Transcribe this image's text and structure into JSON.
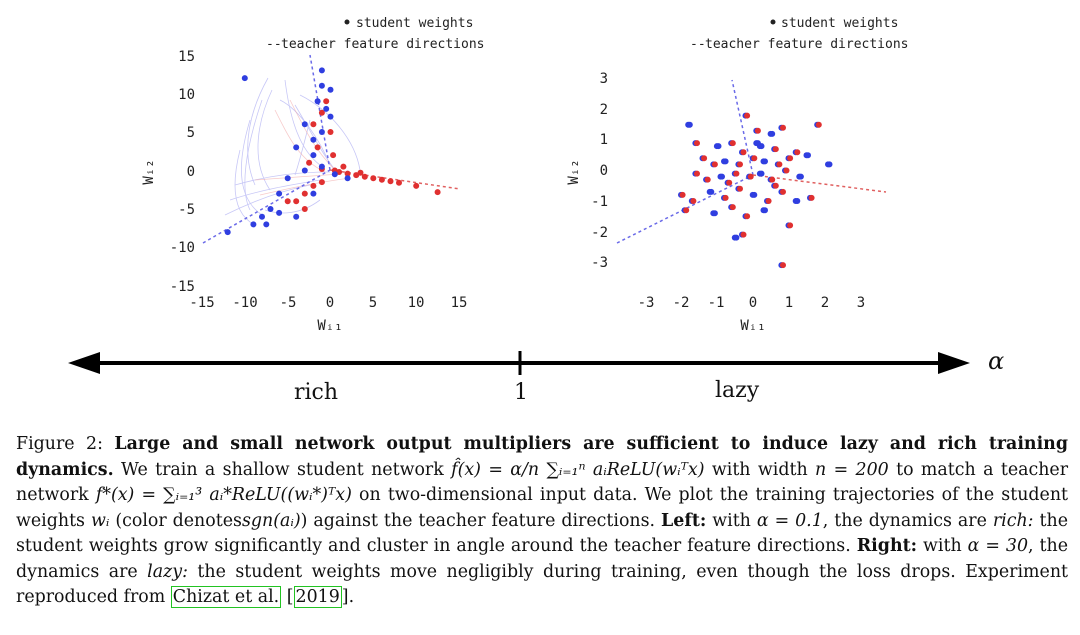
{
  "figure": {
    "legend": {
      "student": "student weights",
      "teacher": "teacher feature directions"
    },
    "colors": {
      "red": "#e03030",
      "blue": "#2f3ee0",
      "dashed_red": "#e06060",
      "dashed_blue": "#6a6ae8"
    },
    "left_plot": {
      "xlabel": "Wᵢ₁",
      "ylabel": "Wᵢ₂",
      "xticks": [
        "-15",
        "-10",
        "-5",
        "0",
        "5",
        "10",
        "15"
      ],
      "yticks": [
        "15",
        "10",
        "5",
        "0",
        "-5",
        "-10",
        "-15"
      ]
    },
    "right_plot": {
      "xlabel": "Wᵢ₁",
      "ylabel": "Wᵢ₂",
      "xticks": [
        "-3",
        "-2",
        "-1",
        "0",
        "1",
        "2",
        "3"
      ],
      "yticks": [
        "3",
        "2",
        "1",
        "0",
        "-1",
        "-2",
        "-3"
      ]
    },
    "axis": {
      "symbol": "α",
      "left": "rich",
      "middle": "1",
      "right": "lazy"
    }
  },
  "chart_data": [
    {
      "type": "scatter",
      "title": "",
      "xlabel": "Wᵢ₁",
      "ylabel": "Wᵢ₂",
      "xlim": [
        -15,
        15
      ],
      "ylim": [
        -15,
        15
      ],
      "legend_placement": "top-right",
      "series": [
        {
          "name": "student weights",
          "color_red": [
            [
              -1,
              0.2
            ],
            [
              0.5,
              0
            ],
            [
              1,
              -0.2
            ],
            [
              2,
              -0.4
            ],
            [
              3,
              -0.6
            ],
            [
              4,
              -0.8
            ],
            [
              5,
              -1
            ],
            [
              6,
              -1.2
            ],
            [
              7,
              -1.4
            ],
            [
              8,
              -1.6
            ],
            [
              10,
              -2
            ],
            [
              12.5,
              -2.8
            ],
            [
              1.5,
              0.5
            ],
            [
              3.5,
              -0.3
            ],
            [
              -2,
              -2
            ],
            [
              -3,
              -3
            ],
            [
              -1,
              -1.5
            ],
            [
              -4,
              -4
            ],
            [
              -2,
              6
            ],
            [
              -1,
              7.5
            ],
            [
              -0.5,
              9
            ],
            [
              0,
              5
            ],
            [
              -1.5,
              3
            ],
            [
              -3,
              -5
            ],
            [
              -5,
              -4
            ],
            [
              -2.5,
              1
            ],
            [
              0.3,
              2
            ]
          ],
          "color_blue": [
            [
              -10,
              12
            ],
            [
              -1.5,
              9
            ],
            [
              -1,
              11
            ],
            [
              -0.5,
              8
            ],
            [
              0,
              7
            ],
            [
              -3,
              6
            ],
            [
              -2,
              4
            ],
            [
              -4,
              3
            ],
            [
              -3,
              0
            ],
            [
              -5,
              -1
            ],
            [
              -6,
              -3
            ],
            [
              -7,
              -5
            ],
            [
              -8,
              -6
            ],
            [
              -9,
              -7
            ],
            [
              -12,
              -8
            ],
            [
              -7.5,
              -7
            ],
            [
              -2,
              -3
            ],
            [
              -1,
              0.5
            ],
            [
              -2,
              2
            ],
            [
              0.5,
              -0.5
            ],
            [
              2,
              -1
            ],
            [
              -4,
              -6
            ],
            [
              -6,
              -5.5
            ],
            [
              -1,
              5
            ],
            [
              0,
              10.5
            ],
            [
              -1,
              13
            ]
          ]
        },
        {
          "name": "teacher feature directions",
          "lines": [
            [
              [
                -15,
                -10
              ],
              [
                15,
                0
              ]
            ],
            [
              [
                15,
                -2.5
              ],
              [
                -2,
                0
              ]
            ],
            [
              [
                -2,
                16
              ],
              [
                0,
                0
              ]
            ]
          ]
        }
      ]
    },
    {
      "type": "scatter",
      "title": "",
      "xlabel": "Wᵢ₁",
      "ylabel": "Wᵢ₂",
      "xlim": [
        -3,
        3
      ],
      "ylim": [
        -3,
        3
      ],
      "legend_placement": "top-right",
      "points": [
        [
          -1.8,
          1.5
        ],
        [
          -0.2,
          1.8
        ],
        [
          0.1,
          1.3
        ],
        [
          0.5,
          1.2
        ],
        [
          0.8,
          1.4
        ],
        [
          1.8,
          1.5
        ],
        [
          -1,
          0.8
        ],
        [
          -0.6,
          0.9
        ],
        [
          -0.3,
          0.6
        ],
        [
          0.2,
          0.8
        ],
        [
          0.6,
          0.7
        ],
        [
          1.2,
          0.6
        ],
        [
          1.5,
          0.5
        ],
        [
          -1.4,
          0.4
        ],
        [
          -1.1,
          0.2
        ],
        [
          -0.8,
          0.3
        ],
        [
          -0.4,
          0.2
        ],
        [
          0,
          0.4
        ],
        [
          0.3,
          0.3
        ],
        [
          0.7,
          0.2
        ],
        [
          1,
          0.4
        ],
        [
          2.1,
          0.2
        ],
        [
          -1.6,
          -0.1
        ],
        [
          -1.3,
          -0.3
        ],
        [
          -0.9,
          -0.2
        ],
        [
          -0.5,
          -0.1
        ],
        [
          -0.1,
          -0.2
        ],
        [
          0.2,
          -0.1
        ],
        [
          0.5,
          -0.3
        ],
        [
          0.9,
          0
        ],
        [
          1.3,
          -0.2
        ],
        [
          -2,
          -0.8
        ],
        [
          -1.7,
          -1
        ],
        [
          -1.2,
          -0.7
        ],
        [
          -0.8,
          -0.9
        ],
        [
          -0.4,
          -0.6
        ],
        [
          0,
          -0.8
        ],
        [
          0.4,
          -1
        ],
        [
          0.8,
          -0.7
        ],
        [
          1.2,
          -1
        ],
        [
          1.6,
          -0.9
        ],
        [
          -1.9,
          -1.3
        ],
        [
          -1.1,
          -1.4
        ],
        [
          -0.6,
          -1.2
        ],
        [
          -0.2,
          -1.5
        ],
        [
          0.3,
          -1.3
        ],
        [
          1,
          -1.8
        ],
        [
          -0.3,
          -2.1
        ],
        [
          -0.5,
          -2.2
        ],
        [
          0.8,
          -3.1
        ],
        [
          -1.6,
          0.9
        ],
        [
          0.1,
          0.9
        ],
        [
          -0.7,
          -0.4
        ],
        [
          0.6,
          -0.5
        ]
      ],
      "teacher_lines": [
        [
          [
            -3.6,
            -2.5
          ],
          [
            0,
            0
          ]
        ],
        [
          [
            3.3,
            -0.7
          ],
          [
            0,
            0
          ]
        ],
        [
          [
            -0.7,
            3
          ],
          [
            0,
            0
          ]
        ]
      ]
    }
  ],
  "caption": {
    "label": "Figure 2:",
    "bold_title": "Large and small network output multipliers are sufficient to induce lazy and rich training dynamics.",
    "p1a": "We train a shallow student network",
    "eq1": "f̂(x) = α/n ∑ᵢ₌₁ⁿ aᵢReLU(wᵢᵀx)",
    "p1b": "with width",
    "eq2": "n = 200",
    "p1c": "to match a teacher network",
    "eq3": "f*(x) = ∑ᵢ₌₁³ aᵢ*ReLU((wᵢ*)ᵀx)",
    "p2a": "on two-dimensional input data. We plot the training trajectories of the student weights",
    "eq4": "wᵢ",
    "p2b": "(color denotes",
    "eq5": "sgn(aᵢ)",
    "p2c": ") against the teacher feature directions.",
    "left_label": "Left:",
    "p3a": "with",
    "eq6": "α = 0.1",
    "p3b": ", the dynamics are",
    "rich": "rich:",
    "p3c": "the student weights grow significantly and cluster in angle around the teacher feature directions.",
    "right_label": "Right:",
    "p4a": "with",
    "eq7": "α = 30",
    "p4b": ", the dynamics are",
    "lazy": "lazy:",
    "p4c": "the student weights move negligibly during training, even though the loss drops. Experiment reproduced from",
    "cite_name": "Chizat et al.",
    "cite_year": "2019",
    "cite_open": "[",
    "cite_close": "]."
  }
}
